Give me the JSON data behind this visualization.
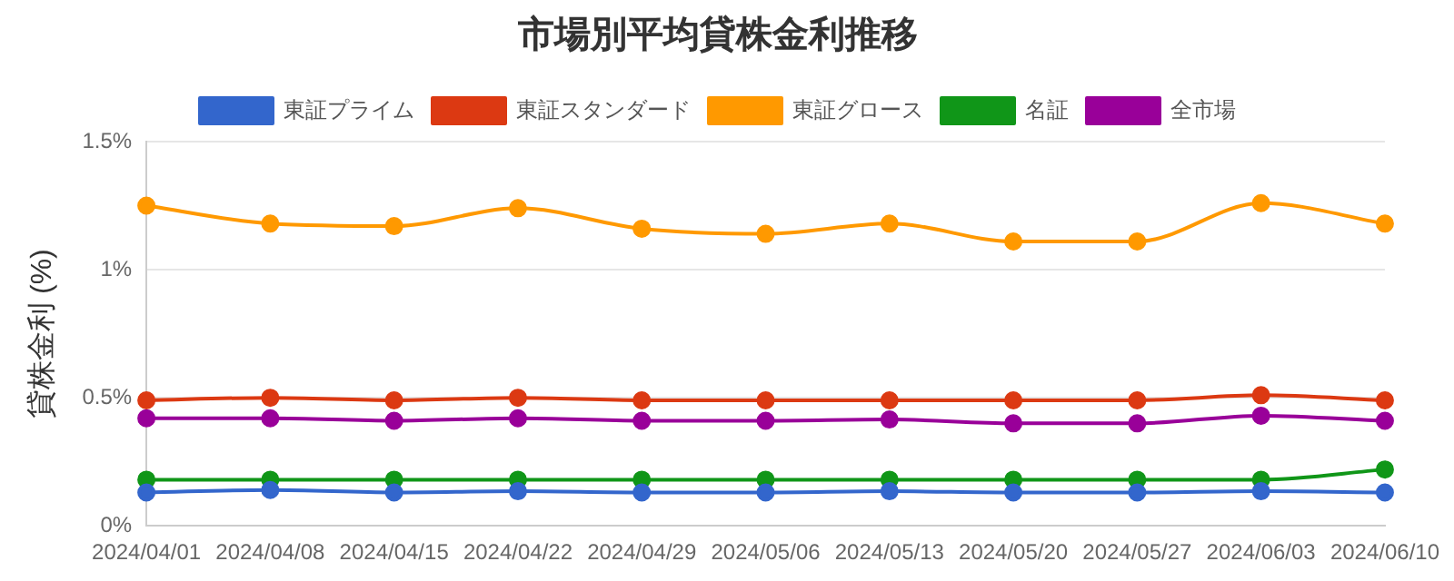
{
  "chart_data": {
    "type": "line",
    "title": "市場別平均貸株金利推移",
    "ylabel": "貸株金利 (%)",
    "categories": [
      "2024/04/01",
      "2024/04/08",
      "2024/04/15",
      "2024/04/22",
      "2024/04/29",
      "2024/05/06",
      "2024/05/13",
      "2024/05/20",
      "2024/05/27",
      "2024/06/03",
      "2024/06/10"
    ],
    "series": [
      {
        "name": "東証プライム",
        "color": "#3366cc",
        "values": [
          0.13,
          0.14,
          0.13,
          0.135,
          0.13,
          0.13,
          0.135,
          0.13,
          0.13,
          0.135,
          0.13
        ]
      },
      {
        "name": "東証スタンダード",
        "color": "#dc3912",
        "values": [
          0.49,
          0.5,
          0.49,
          0.5,
          0.49,
          0.49,
          0.49,
          0.49,
          0.49,
          0.51,
          0.49
        ]
      },
      {
        "name": "東証グロース",
        "color": "#ff9900",
        "values": [
          1.25,
          1.18,
          1.17,
          1.24,
          1.16,
          1.14,
          1.18,
          1.11,
          1.11,
          1.26,
          1.18
        ]
      },
      {
        "name": "名証",
        "color": "#109618",
        "values": [
          0.18,
          0.18,
          0.18,
          0.18,
          0.18,
          0.18,
          0.18,
          0.18,
          0.18,
          0.18,
          0.22
        ]
      },
      {
        "name": "全市場",
        "color": "#990099",
        "values": [
          0.42,
          0.42,
          0.41,
          0.42,
          0.41,
          0.41,
          0.415,
          0.4,
          0.4,
          0.43,
          0.41
        ]
      }
    ],
    "ylim": [
      0,
      1.5
    ],
    "yticks": [
      {
        "value": 0,
        "label": "0%"
      },
      {
        "value": 0.5,
        "label": "0.5%"
      },
      {
        "value": 1,
        "label": "1%"
      },
      {
        "value": 1.5,
        "label": "1.5%"
      }
    ],
    "grid": "y",
    "legend": "top",
    "marker": "circle",
    "line_style": "solid"
  }
}
